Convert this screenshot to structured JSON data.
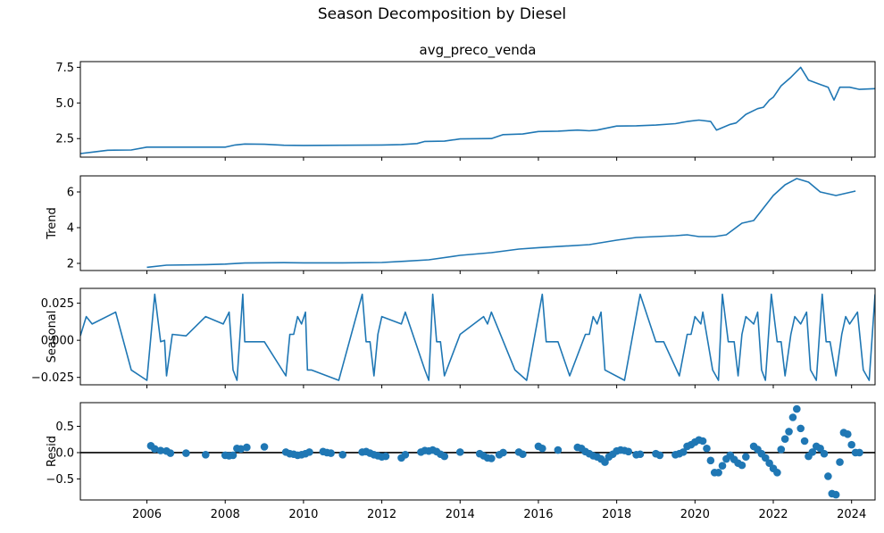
{
  "figure": {
    "title": "Season Decomposition by Diesel"
  },
  "colors": {
    "line": "#1f77b4",
    "axis": "#000000",
    "zero_line": "#000000"
  },
  "x_axis": {
    "min": 2004.3,
    "max": 2024.6,
    "ticks": [
      2006,
      2008,
      2010,
      2012,
      2014,
      2016,
      2018,
      2020,
      2022,
      2024
    ],
    "tick_labels": [
      "2006",
      "2008",
      "2010",
      "2012",
      "2014",
      "2016",
      "2018",
      "2020",
      "2022",
      "2024"
    ]
  },
  "chart_data": [
    {
      "type": "line",
      "title": "avg_preco_venda",
      "ylabel": "",
      "ylim": [
        1.2,
        7.9
      ],
      "yticks": [
        2.5,
        5.0,
        7.5
      ],
      "ytick_labels": [
        "2.5",
        "5.0",
        "7.5"
      ],
      "x": [
        2004.3,
        2004.6,
        2005.0,
        2005.6,
        2006.0,
        2007.0,
        2008.0,
        2008.25,
        2008.5,
        2009.0,
        2009.5,
        2010.0,
        2011.0,
        2012.0,
        2012.5,
        2012.9,
        2013.1,
        2013.6,
        2014.0,
        2014.8,
        2015.1,
        2015.6,
        2016.0,
        2016.5,
        2017.0,
        2017.3,
        2017.5,
        2018.0,
        2018.5,
        2019.0,
        2019.5,
        2019.8,
        2020.1,
        2020.4,
        2020.55,
        2020.9,
        2021.05,
        2021.3,
        2021.6,
        2021.75,
        2021.9,
        2022.0,
        2022.2,
        2022.45,
        2022.7,
        2022.9,
        2023.2,
        2023.4,
        2023.55,
        2023.7,
        2023.95,
        2024.2,
        2024.6
      ],
      "y": [
        1.45,
        1.55,
        1.68,
        1.7,
        1.9,
        1.9,
        1.9,
        2.05,
        2.12,
        2.1,
        2.03,
        2.02,
        2.03,
        2.05,
        2.08,
        2.15,
        2.3,
        2.32,
        2.48,
        2.5,
        2.78,
        2.82,
        3.0,
        3.02,
        3.1,
        3.05,
        3.1,
        3.38,
        3.4,
        3.45,
        3.55,
        3.7,
        3.8,
        3.7,
        3.1,
        3.5,
        3.6,
        4.2,
        4.6,
        4.7,
        5.2,
        5.4,
        6.2,
        6.8,
        7.5,
        6.6,
        6.3,
        6.1,
        5.2,
        6.1,
        6.1,
        5.95,
        6.0
      ]
    },
    {
      "type": "line",
      "title": "",
      "ylabel": "Trend",
      "ylim": [
        1.6,
        6.9
      ],
      "yticks": [
        2,
        4,
        6
      ],
      "ytick_labels": [
        "2",
        "4",
        "6"
      ],
      "x": [
        2006.0,
        2006.5,
        2007.5,
        2008.0,
        2008.5,
        2009.5,
        2010.0,
        2011.0,
        2012.0,
        2012.6,
        2013.2,
        2014.0,
        2014.8,
        2015.5,
        2016.0,
        2016.7,
        2017.3,
        2018.0,
        2018.5,
        2019.0,
        2019.5,
        2019.8,
        2020.1,
        2020.5,
        2020.8,
        2021.2,
        2021.5,
        2022.0,
        2022.3,
        2022.6,
        2022.9,
        2023.2,
        2023.6,
        2024.1
      ],
      "y": [
        1.78,
        1.9,
        1.93,
        1.96,
        2.02,
        2.04,
        2.03,
        2.03,
        2.05,
        2.12,
        2.2,
        2.45,
        2.6,
        2.8,
        2.88,
        2.97,
        3.05,
        3.3,
        3.45,
        3.5,
        3.55,
        3.6,
        3.5,
        3.5,
        3.6,
        4.25,
        4.4,
        5.8,
        6.4,
        6.75,
        6.55,
        6.0,
        5.8,
        6.05
      ]
    },
    {
      "type": "line",
      "title": "",
      "ylabel": "Seasonal",
      "ylim": [
        -0.03,
        0.035
      ],
      "yticks": [
        -0.025,
        0.0,
        0.025
      ],
      "ytick_labels": [
        "−0.025",
        "0.000",
        "0.025"
      ],
      "x": [
        2004.3,
        2004.45,
        2004.6,
        2005.2,
        2005.6,
        2006.0,
        2006.2,
        2006.35,
        2006.45,
        2006.5,
        2006.65,
        2007.0,
        2007.5,
        2007.95,
        2008.1,
        2008.2,
        2008.3,
        2008.45,
        2008.5,
        2009.0,
        2009.55,
        2009.65,
        2009.75,
        2009.85,
        2009.95,
        2010.05,
        2010.1,
        2010.2,
        2010.9,
        2011.5,
        2011.6,
        2011.7,
        2011.8,
        2011.9,
        2012.0,
        2012.5,
        2012.6,
        2013.1,
        2013.2,
        2013.3,
        2013.4,
        2013.5,
        2013.6,
        2014.0,
        2014.6,
        2014.7,
        2014.8,
        2015.4,
        2015.7,
        2016.1,
        2016.2,
        2016.5,
        2016.8,
        2017.2,
        2017.3,
        2017.4,
        2017.5,
        2017.6,
        2017.7,
        2018.2,
        2018.6,
        2019.0,
        2019.2,
        2019.6,
        2019.8,
        2019.9,
        2020.0,
        2020.15,
        2020.2,
        2020.45,
        2020.6,
        2020.7,
        2020.85,
        2021.0,
        2021.1,
        2021.2,
        2021.3,
        2021.5,
        2021.6,
        2021.7,
        2021.8,
        2021.95,
        2022.1,
        2022.2,
        2022.3,
        2022.45,
        2022.55,
        2022.7,
        2022.85,
        2022.95,
        2023.1,
        2023.25,
        2023.35,
        2023.45,
        2023.6,
        2023.75,
        2023.85,
        2023.95,
        2024.15,
        2024.3,
        2024.45,
        2024.6
      ],
      "y": [
        0.003,
        0.016,
        0.011,
        0.019,
        -0.02,
        -0.027,
        0.031,
        -0.001,
        0.0,
        -0.024,
        0.004,
        0.003,
        0.016,
        0.011,
        0.019,
        -0.02,
        -0.027,
        0.031,
        -0.001,
        -0.001,
        -0.024,
        0.004,
        0.004,
        0.016,
        0.011,
        0.019,
        -0.02,
        -0.02,
        -0.027,
        0.031,
        -0.001,
        -0.001,
        -0.024,
        0.004,
        0.016,
        0.011,
        0.019,
        -0.02,
        -0.027,
        0.031,
        -0.001,
        -0.001,
        -0.024,
        0.004,
        0.016,
        0.011,
        0.019,
        -0.02,
        -0.027,
        0.031,
        -0.001,
        -0.001,
        -0.024,
        0.004,
        0.004,
        0.016,
        0.011,
        0.019,
        -0.02,
        -0.027,
        0.031,
        -0.001,
        -0.001,
        -0.024,
        0.004,
        0.004,
        0.016,
        0.011,
        0.019,
        -0.02,
        -0.027,
        0.031,
        -0.001,
        -0.001,
        -0.024,
        0.004,
        0.016,
        0.011,
        0.019,
        -0.02,
        -0.027,
        0.031,
        -0.001,
        -0.001,
        -0.024,
        0.004,
        0.016,
        0.011,
        0.019,
        -0.02,
        -0.027,
        0.031,
        -0.001,
        -0.001,
        -0.024,
        0.004,
        0.016,
        0.011,
        0.019,
        -0.02,
        -0.027,
        0.031
      ]
    },
    {
      "type": "scatter",
      "title": "",
      "ylabel": "Resid",
      "ylim": [
        -0.9,
        0.95
      ],
      "yticks": [
        -0.5,
        0.0,
        0.5
      ],
      "ytick_labels": [
        "−0.5",
        "0.0",
        "0.5"
      ],
      "zero_line": true,
      "x": [
        2006.1,
        2006.2,
        2006.35,
        2006.5,
        2006.6,
        2007.0,
        2007.5,
        2008.0,
        2008.1,
        2008.2,
        2008.3,
        2008.4,
        2008.55,
        2009.0,
        2009.55,
        2009.65,
        2009.75,
        2009.85,
        2009.95,
        2010.05,
        2010.15,
        2010.5,
        2010.6,
        2010.7,
        2011.0,
        2011.5,
        2011.6,
        2011.7,
        2011.8,
        2011.9,
        2012.0,
        2012.1,
        2012.5,
        2012.6,
        2013.0,
        2013.1,
        2013.2,
        2013.3,
        2013.4,
        2013.5,
        2013.6,
        2014.0,
        2014.5,
        2014.6,
        2014.7,
        2014.8,
        2015.0,
        2015.1,
        2015.5,
        2015.6,
        2016.0,
        2016.1,
        2016.5,
        2017.0,
        2017.1,
        2017.2,
        2017.3,
        2017.4,
        2017.5,
        2017.6,
        2017.7,
        2017.8,
        2017.9,
        2018.0,
        2018.1,
        2018.2,
        2018.3,
        2018.5,
        2018.6,
        2019.0,
        2019.1,
        2019.5,
        2019.6,
        2019.7,
        2019.8,
        2019.9,
        2020.0,
        2020.1,
        2020.2,
        2020.3,
        2020.4,
        2020.5,
        2020.6,
        2020.7,
        2020.8,
        2020.9,
        2021.0,
        2021.1,
        2021.2,
        2021.3,
        2021.5,
        2021.6,
        2021.7,
        2021.8,
        2021.9,
        2022.0,
        2022.1,
        2022.2,
        2022.3,
        2022.4,
        2022.5,
        2022.6,
        2022.7,
        2022.8,
        2022.9,
        2023.0,
        2023.1,
        2023.2,
        2023.3,
        2023.4,
        2023.5,
        2023.6,
        2023.7,
        2023.8,
        2023.9,
        2024.0,
        2024.1,
        2024.2
      ],
      "y": [
        0.13,
        0.07,
        0.04,
        0.03,
        -0.01,
        -0.01,
        -0.04,
        -0.05,
        -0.06,
        -0.05,
        0.08,
        0.07,
        0.1,
        0.11,
        0.01,
        -0.02,
        -0.03,
        -0.05,
        -0.04,
        -0.02,
        0.01,
        0.02,
        0.0,
        -0.01,
        -0.04,
        0.01,
        0.02,
        -0.01,
        -0.04,
        -0.06,
        -0.08,
        -0.07,
        -0.1,
        -0.04,
        0.01,
        0.04,
        0.03,
        0.05,
        0.02,
        -0.03,
        -0.07,
        0.01,
        -0.02,
        -0.06,
        -0.1,
        -0.11,
        -0.04,
        0.0,
        0.01,
        -0.03,
        0.12,
        0.08,
        0.05,
        0.1,
        0.08,
        0.02,
        -0.02,
        -0.06,
        -0.08,
        -0.12,
        -0.18,
        -0.08,
        -0.03,
        0.03,
        0.05,
        0.04,
        0.02,
        -0.04,
        -0.03,
        -0.02,
        -0.05,
        -0.04,
        -0.02,
        0.01,
        0.12,
        0.15,
        0.2,
        0.24,
        0.22,
        0.08,
        -0.15,
        -0.38,
        -0.38,
        -0.25,
        -0.12,
        -0.05,
        -0.13,
        -0.2,
        -0.24,
        -0.08,
        0.12,
        0.06,
        -0.02,
        -0.1,
        -0.2,
        -0.3,
        -0.38,
        0.06,
        0.26,
        0.4,
        0.67,
        0.83,
        0.46,
        0.22,
        -0.07,
        0.01,
        0.12,
        0.08,
        -0.02,
        -0.45,
        -0.78,
        -0.8,
        -0.18,
        0.38,
        0.35,
        0.15,
        0.0,
        0.0
      ]
    }
  ]
}
